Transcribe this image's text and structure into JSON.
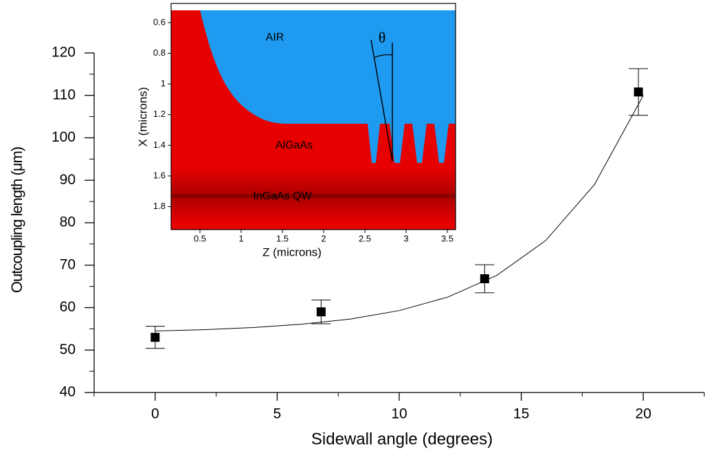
{
  "chart_data": [
    {
      "type": "scatter",
      "x_label": "Sidewall angle (degrees)",
      "y_label": "Outcoupling length (μm)",
      "xlim": [
        -2.5,
        22.5
      ],
      "ylim": [
        40,
        120
      ],
      "xticks": [
        0,
        5,
        10,
        15,
        20
      ],
      "yticks": [
        40,
        50,
        60,
        70,
        80,
        90,
        100,
        110,
        120
      ],
      "xminorticks": [
        -2.5,
        2.5,
        7.5,
        12.5,
        17.5,
        22.5
      ],
      "yminorticks": [
        45,
        55,
        65,
        75,
        85,
        95,
        105,
        115
      ],
      "series": [
        {
          "type": "scatter",
          "color": "#000000",
          "x": [
            0,
            6.8,
            13.5,
            19.8
          ],
          "values": [
            53,
            59,
            66.8,
            110.8
          ],
          "errors": [
            2.6,
            2.8,
            3.3,
            5.5
          ]
        },
        {
          "type": "line",
          "color": "#000000",
          "x": [
            0,
            2,
            4,
            6,
            8,
            10,
            12,
            14,
            16,
            18,
            20
          ],
          "values": [
            54.5,
            54.8,
            55.3,
            56.1,
            57.3,
            59.3,
            62.5,
            67.6,
            75.8,
            89,
            110
          ]
        }
      ]
    },
    {
      "type": "image",
      "x_label": "Z (microns)",
      "y_label": "X (microns)",
      "xlim": [
        0.15,
        3.6
      ],
      "ylim": [
        0.475,
        1.95
      ],
      "xticks": [
        0.5,
        1,
        1.5,
        2,
        2.5,
        3,
        3.5
      ],
      "yticks": [
        0.6,
        0.8,
        1,
        1.2,
        1.4,
        1.6,
        1.8
      ],
      "annotations": [
        "AIR",
        "AlGaAs",
        "InGaAs QW",
        "θ"
      ]
    }
  ]
}
